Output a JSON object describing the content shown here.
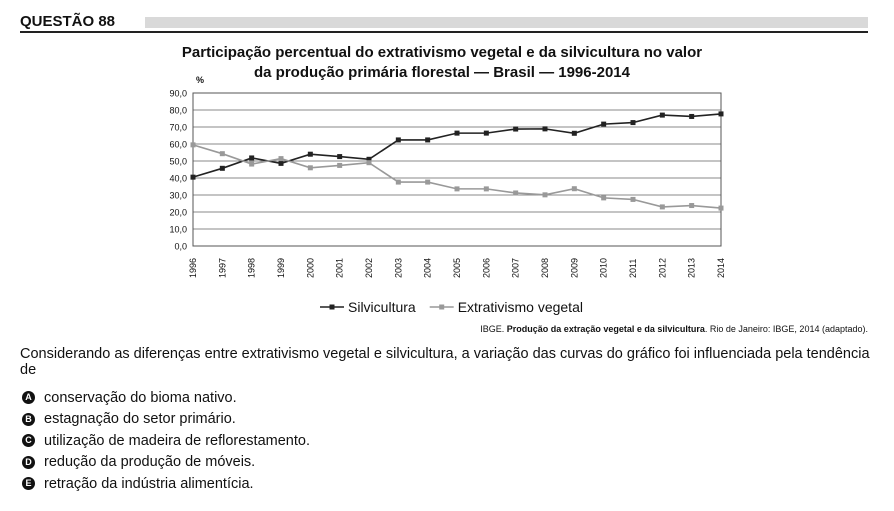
{
  "header": {
    "label": "QUESTÃO 88"
  },
  "chart_data": {
    "type": "line",
    "title_lines": [
      "Participação percentual do extrativismo vegetal e da silvicultura no valor",
      "da produção primária florestal — Brasil — 1996-2014"
    ],
    "ylabel": "%",
    "ylim": [
      0,
      90
    ],
    "yticks": [
      "0,0",
      "10,0",
      "20,0",
      "30,0",
      "40,0",
      "50,0",
      "60,0",
      "70,0",
      "80,0",
      "90,0"
    ],
    "categories": [
      "1996",
      "1997",
      "1998",
      "1999",
      "2000",
      "2001",
      "2002",
      "2003",
      "2004",
      "2005",
      "2006",
      "2007",
      "2008",
      "2009",
      "2010",
      "2011",
      "2012",
      "2013",
      "2014"
    ],
    "series": [
      {
        "name": "Silvicultura",
        "color": "#222222",
        "marker": "square",
        "values": [
          40.5,
          45.7,
          51.8,
          48.6,
          54.0,
          52.6,
          51.0,
          62.4,
          62.4,
          66.4,
          66.4,
          68.8,
          68.9,
          66.3,
          71.7,
          72.6,
          77.0,
          76.2,
          77.7
        ]
      },
      {
        "name": "Extrativismo vegetal",
        "color": "#999999",
        "marker": "square",
        "values": [
          59.5,
          54.3,
          48.2,
          51.4,
          46.0,
          47.4,
          49.0,
          37.6,
          37.6,
          33.6,
          33.6,
          31.2,
          30.1,
          33.7,
          28.3,
          27.4,
          23.0,
          23.8,
          22.3
        ]
      }
    ],
    "grid": true,
    "legend_position": "bottom"
  },
  "source": {
    "prefix": "IBGE. ",
    "title": "Produção da extração vegetal e da silvicultura",
    "suffix": ". Rio de Janeiro: IBGE, 2014 (adaptado)."
  },
  "question": {
    "text": "Considerando as diferenças entre extrativismo vegetal e silvicultura, a variação das curvas do gráfico foi influenciada pela tendência de",
    "options": [
      {
        "letter": "A",
        "text": "conservação do bioma nativo."
      },
      {
        "letter": "B",
        "text": "estagnação do setor primário."
      },
      {
        "letter": "C",
        "text": "utilização de madeira de reflorestamento."
      },
      {
        "letter": "D",
        "text": "redução da produção de móveis."
      },
      {
        "letter": "E",
        "text": "retração da indústria alimentícia."
      }
    ]
  }
}
